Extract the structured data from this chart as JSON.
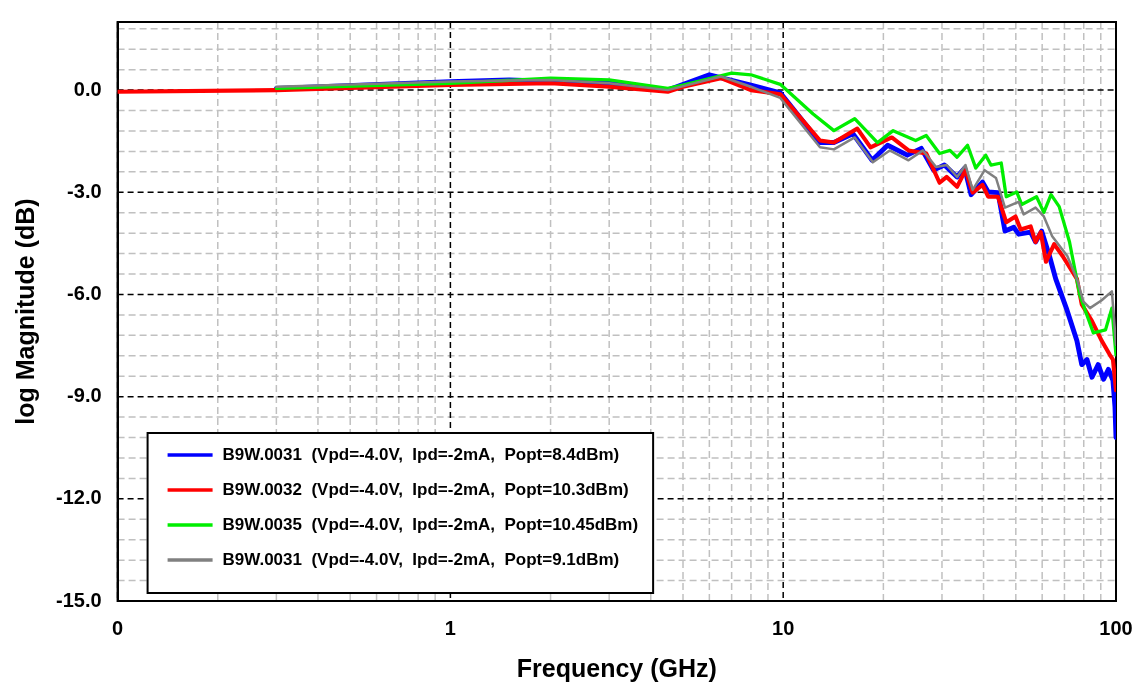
{
  "chart_data": {
    "type": "line",
    "xlabel": "Frequency (GHz)",
    "ylabel": "log Magnitude (dB)",
    "log": "x",
    "grid": true,
    "legend": "bottom left",
    "marker": "none",
    "line_style": "solid",
    "xlim": [
      0.1,
      100
    ],
    "ylim": [
      -15,
      2
    ],
    "xticks": [
      {
        "value": 0.1,
        "label": "0"
      },
      {
        "value": 0.2,
        "label": null
      },
      {
        "value": 0.3,
        "label": null
      },
      {
        "value": 0.4,
        "label": null
      },
      {
        "value": 0.5,
        "label": null
      },
      {
        "value": 0.6,
        "label": null
      },
      {
        "value": 0.7,
        "label": null
      },
      {
        "value": 0.8,
        "label": null
      },
      {
        "value": 0.9,
        "label": null
      },
      1,
      {
        "value": 2,
        "label": null
      },
      {
        "value": 3,
        "label": null
      },
      {
        "value": 4,
        "label": null
      },
      {
        "value": 5,
        "label": null
      },
      {
        "value": 6,
        "label": null
      },
      {
        "value": 7,
        "label": null
      },
      {
        "value": 8,
        "label": null
      },
      {
        "value": 9,
        "label": null
      },
      10,
      {
        "value": 20,
        "label": null
      },
      {
        "value": 30,
        "label": null
      },
      {
        "value": 40,
        "label": null
      },
      {
        "value": 50,
        "label": null
      },
      {
        "value": 60,
        "label": null
      },
      {
        "value": 70,
        "label": null
      },
      {
        "value": 80,
        "label": null
      },
      {
        "value": 90,
        "label": null
      },
      100
    ],
    "yticks": [
      {
        "value": -15,
        "label": "-15.0"
      },
      {
        "value": -14.4,
        "label": null
      },
      {
        "value": -13.8,
        "label": null
      },
      {
        "value": -13.2,
        "label": null
      },
      {
        "value": -12.6,
        "label": null
      },
      {
        "value": -12,
        "label": "-12.0"
      },
      {
        "value": -11.4,
        "label": null
      },
      {
        "value": -10.8,
        "label": null
      },
      {
        "value": -10.2,
        "label": null
      },
      {
        "value": -9.6,
        "label": null
      },
      {
        "value": -9,
        "label": "-9.0"
      },
      {
        "value": -8.4,
        "label": null
      },
      {
        "value": -7.8,
        "label": null
      },
      {
        "value": -7.2,
        "label": null
      },
      {
        "value": -6.6,
        "label": null
      },
      {
        "value": -6,
        "label": "-6.0"
      },
      {
        "value": -5.4,
        "label": null
      },
      {
        "value": -4.8,
        "label": null
      },
      {
        "value": -4.2,
        "label": null
      },
      {
        "value": -3.6,
        "label": null
      },
      {
        "value": -3,
        "label": "-3.0"
      },
      {
        "value": -2.4,
        "label": null
      },
      {
        "value": -1.8,
        "label": null
      },
      {
        "value": -1.2,
        "label": null
      },
      {
        "value": -0.6,
        "label": null
      },
      {
        "value": 0,
        "label": "0.0"
      },
      {
        "value": 0.6,
        "label": null
      },
      {
        "value": 1.2,
        "label": null
      },
      {
        "value": 1.8,
        "label": null
      }
    ],
    "series": [
      {
        "name": "B9W.0031  (Vpd=-4.0V,  Ipd=-2mA,  Popt=8.4dBm)",
        "color": "#0000ff",
        "x": [
          0.3,
          1,
          1.5,
          3,
          4.5,
          6,
          8,
          9.8,
          12.9,
          14.2,
          16.2,
          18.5,
          20.6,
          23.6,
          26,
          28.3,
          30.5,
          33.3,
          35.1,
          36.7,
          39.7,
          41.3,
          44.2,
          46.4,
          49.3,
          51,
          55.4,
          57.3,
          59.8,
          63.1,
          65.9,
          70.9,
          76.3,
          78.9,
          81.8,
          84.7,
          88.4,
          91.8,
          94.9,
          97.9,
          99.3,
          100
        ],
        "values": [
          0.05,
          0.25,
          0.3,
          0.2,
          0.0,
          0.45,
          0.15,
          -0.08,
          -1.54,
          -1.54,
          -1.28,
          -2.06,
          -1.62,
          -1.91,
          -1.71,
          -2.35,
          -2.2,
          -2.55,
          -2.29,
          -3.07,
          -2.7,
          -2.99,
          -3.01,
          -4.14,
          -4.03,
          -4.23,
          -4.17,
          -4.46,
          -4.14,
          -4.87,
          -5.54,
          -6.4,
          -7.36,
          -8.06,
          -7.91,
          -8.43,
          -8.06,
          -8.49,
          -8.2,
          -8.52,
          -9.3,
          -10.2
        ]
      },
      {
        "name": "B9W.0032  (Vpd=-4.0V,  Ipd=-2mA,  Popt=10.3dBm)",
        "color": "#ff0000",
        "x": [
          0.1,
          0.3,
          1,
          2,
          3,
          4.5,
          5,
          6.5,
          8,
          9.8,
          12.9,
          14.2,
          16.7,
          18.3,
          21.2,
          23.8,
          26.9,
          29.5,
          31,
          33.3,
          35.3,
          37.1,
          39.7,
          41.3,
          44.2,
          46.8,
          49.9,
          51.7,
          55.4,
          57.3,
          59.4,
          61.6,
          65.2,
          69.1,
          76.3,
          78.9,
          84.7,
          90.6,
          95.8,
          97.9,
          100
        ],
        "values": [
          -0.05,
          0.0,
          0.15,
          0.2,
          0.1,
          -0.05,
          0.1,
          0.35,
          0.0,
          -0.12,
          -1.48,
          -1.54,
          -1.13,
          -1.68,
          -1.39,
          -1.77,
          -1.86,
          -2.72,
          -2.55,
          -2.84,
          -2.35,
          -3.01,
          -2.78,
          -3.13,
          -3.13,
          -3.88,
          -3.71,
          -4.09,
          -4.0,
          -4.46,
          -4.17,
          -5.04,
          -4.52,
          -4.87,
          -5.54,
          -6.29,
          -6.78,
          -7.36,
          -7.77,
          -7.91,
          -8.81
        ]
      },
      {
        "name": "B9W.0035  (Vpd=-4.0V,  Ipd=-2mA,  Popt=10.45dBm)",
        "color": "#00ee00",
        "x": [
          0.3,
          1,
          2,
          3,
          4.5,
          5,
          7,
          8,
          9.8,
          12.3,
          14.2,
          16.4,
          19.2,
          21.4,
          25,
          26.9,
          29.5,
          31.7,
          33.3,
          35.8,
          37.9,
          40.6,
          42.1,
          45.2,
          46.8,
          50.3,
          52.1,
          57.7,
          60.7,
          63.8,
          67.5,
          72.5,
          77.9,
          85.5,
          93,
          97.2,
          100
        ],
        "values": [
          0.05,
          0.2,
          0.35,
          0.3,
          0.05,
          0.15,
          0.5,
          0.45,
          0.17,
          -0.7,
          -1.19,
          -0.84,
          -1.54,
          -1.19,
          -1.48,
          -1.33,
          -1.86,
          -1.77,
          -1.97,
          -1.62,
          -2.29,
          -1.91,
          -2.2,
          -2.14,
          -3.13,
          -2.99,
          -3.36,
          -3.13,
          -3.59,
          -3.07,
          -3.42,
          -4.46,
          -6.03,
          -7.13,
          -7.04,
          -6.4,
          -7.77
        ]
      },
      {
        "name": "B9W.0031  (Vpd=-4.0V,  Ipd=-2mA,  Popt=9.1dBm)",
        "color": "#808080",
        "x": [
          0.3,
          1,
          2,
          3,
          4.5,
          6.5,
          8,
          9.8,
          12.9,
          14.2,
          16.4,
          18.6,
          20.9,
          23.8,
          26.3,
          28.8,
          31,
          33.3,
          35.3,
          37.1,
          40.3,
          43.6,
          46.4,
          51,
          52.8,
          57.3,
          60.7,
          64.3,
          71.4,
          76.8,
          79.7,
          83.5,
          90.6,
          97.2,
          100
        ],
        "values": [
          0.1,
          0.25,
          0.3,
          0.2,
          0.0,
          0.4,
          0.1,
          -0.23,
          -1.68,
          -1.74,
          -1.39,
          -2.12,
          -1.77,
          -2.06,
          -1.77,
          -2.26,
          -2.2,
          -2.55,
          -2.2,
          -2.93,
          -2.35,
          -2.58,
          -3.45,
          -3.28,
          -3.65,
          -3.45,
          -3.71,
          -4.29,
          -4.87,
          -5.62,
          -6.2,
          -6.4,
          -6.17,
          -5.91,
          -7.48
        ]
      }
    ]
  }
}
